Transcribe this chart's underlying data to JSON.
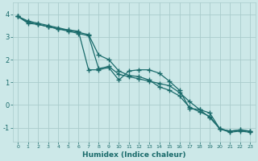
{
  "xlabel": "Humidex (Indice chaleur)",
  "xlim": [
    -0.5,
    23.5
  ],
  "ylim": [
    -1.6,
    4.5
  ],
  "background_color": "#cce8e8",
  "grid_color": "#aacccc",
  "line_color": "#1a6b6b",
  "line1_x": [
    0,
    1,
    2,
    3,
    4,
    5,
    6,
    7,
    8,
    9,
    10,
    11,
    12,
    13,
    14,
    15,
    16,
    17,
    18,
    19,
    20,
    21,
    22,
    23
  ],
  "line1_y": [
    3.9,
    3.6,
    3.55,
    3.45,
    3.35,
    3.3,
    3.25,
    1.55,
    1.55,
    1.65,
    1.1,
    1.5,
    1.55,
    1.55,
    1.4,
    1.05,
    0.65,
    -0.15,
    -0.2,
    -0.35,
    -1.05,
    -1.15,
    -1.1,
    -1.15
  ],
  "line2_x": [
    0,
    1,
    2,
    3,
    4,
    5,
    6,
    7,
    8,
    9,
    10,
    11,
    12,
    13,
    14,
    15,
    16,
    17,
    18,
    19,
    20,
    21,
    22,
    23
  ],
  "line2_y": [
    3.9,
    3.65,
    3.55,
    3.45,
    3.35,
    3.25,
    3.15,
    3.05,
    1.6,
    1.7,
    1.35,
    1.25,
    1.15,
    1.05,
    0.95,
    0.85,
    0.55,
    0.15,
    -0.2,
    -0.55,
    -1.05,
    -1.2,
    -1.15,
    -1.2
  ],
  "line3_x": [
    0,
    1,
    2,
    3,
    4,
    5,
    6,
    7,
    8,
    9,
    10,
    11,
    12,
    13,
    14,
    15,
    16,
    17,
    18,
    19,
    20,
    21,
    22,
    23
  ],
  "line3_y": [
    3.9,
    3.7,
    3.6,
    3.5,
    3.4,
    3.3,
    3.2,
    3.1,
    2.2,
    2.0,
    1.5,
    1.3,
    1.25,
    1.1,
    0.8,
    0.65,
    0.4,
    -0.1,
    -0.3,
    -0.5,
    -1.05,
    -1.15,
    -1.1,
    -1.15
  ],
  "xtick_labels": [
    "0",
    "1",
    "2",
    "3",
    "4",
    "5",
    "6",
    "7",
    "8",
    "9",
    "10",
    "11",
    "12",
    "13",
    "14",
    "15",
    "16",
    "17",
    "18",
    "19",
    "20",
    "21",
    "22",
    "23"
  ],
  "ytick_values": [
    -1,
    0,
    1,
    2,
    3,
    4
  ],
  "marker": "+",
  "markersize": 4,
  "linewidth": 0.9
}
